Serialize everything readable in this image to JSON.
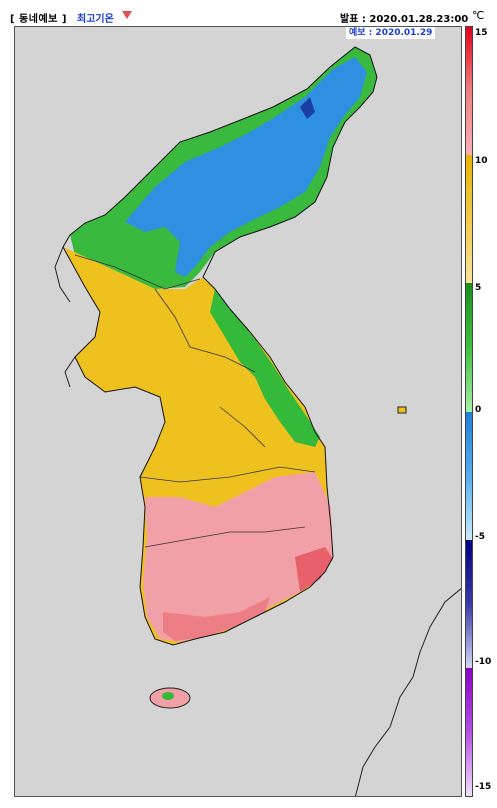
{
  "header": {
    "category": "[ 동네예보 ]",
    "variable": "최고기온",
    "issued": "발표 : 2020.01.28.23:00",
    "unit": "℃",
    "valid": "예보 : 2020.01.29"
  },
  "colorbar": {
    "ticks": [
      "15",
      "10",
      "5",
      "0",
      "-5",
      "-10",
      "-15"
    ],
    "segments": [
      {
        "from": 15,
        "to": 10,
        "colors": [
          "#e6001a",
          "#f08080",
          "#f7a8b0"
        ]
      },
      {
        "from": 10,
        "to": 5,
        "colors": [
          "#e8b400",
          "#f2c94c",
          "#f8e49a"
        ]
      },
      {
        "from": 5,
        "to": 0,
        "colors": [
          "#1a8f1a",
          "#3fbf3f",
          "#9ee89e"
        ]
      },
      {
        "from": 0,
        "to": -5,
        "colors": [
          "#1e7fd6",
          "#55aef0",
          "#bfe6fb"
        ]
      },
      {
        "from": -5,
        "to": -10,
        "colors": [
          "#000080",
          "#3a3aa8",
          "#c8c8ec"
        ]
      },
      {
        "from": -10,
        "to": -15,
        "colors": [
          "#8a00c8",
          "#b44fe6",
          "#ead0f8"
        ]
      }
    ]
  },
  "map": {
    "background": "#d4d4d4",
    "regions": [
      {
        "name": "north-east-cold",
        "color": "#2f8fe0"
      },
      {
        "name": "north-green",
        "color": "#35b93a"
      },
      {
        "name": "central-yellow",
        "color": "#eec11f"
      },
      {
        "name": "south-pink",
        "color": "#f2a0a8"
      },
      {
        "name": "south-coast-red",
        "color": "#e8606a"
      }
    ]
  }
}
